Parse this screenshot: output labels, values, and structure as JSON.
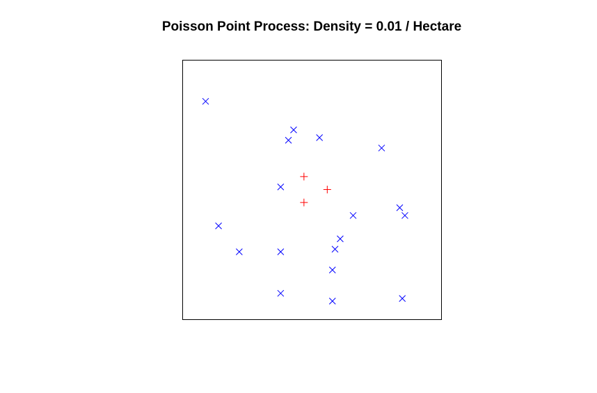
{
  "chart_data": {
    "type": "scatter",
    "title": "Poisson Point Process: Density = 0.01 / Hectare",
    "xlabel": "",
    "ylabel": "",
    "xlim": [
      0,
      1
    ],
    "ylim": [
      0,
      1
    ],
    "grid": false,
    "axes_shown": false,
    "series": [
      {
        "marker": "x",
        "color": "#0000ff",
        "points": [
          [
            0.09,
            0.84
          ],
          [
            0.43,
            0.73
          ],
          [
            0.41,
            0.69
          ],
          [
            0.53,
            0.7
          ],
          [
            0.77,
            0.66
          ],
          [
            0.38,
            0.51
          ],
          [
            0.84,
            0.43
          ],
          [
            0.86,
            0.4
          ],
          [
            0.66,
            0.4
          ],
          [
            0.14,
            0.36
          ],
          [
            0.61,
            0.31
          ],
          [
            0.59,
            0.27
          ],
          [
            0.22,
            0.26
          ],
          [
            0.38,
            0.26
          ],
          [
            0.58,
            0.19
          ],
          [
            0.38,
            0.1
          ],
          [
            0.58,
            0.07
          ],
          [
            0.85,
            0.08
          ]
        ]
      },
      {
        "marker": "+",
        "color": "#ff0000",
        "points": [
          [
            0.47,
            0.55
          ],
          [
            0.56,
            0.5
          ],
          [
            0.47,
            0.45
          ]
        ]
      }
    ]
  }
}
